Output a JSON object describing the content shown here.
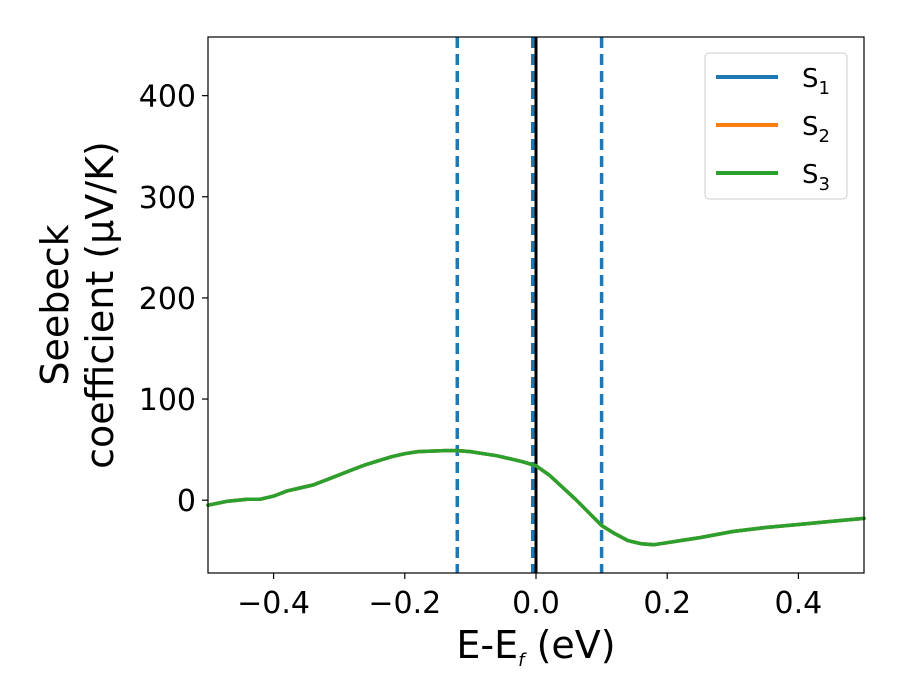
{
  "chart_data": {
    "type": "line",
    "xlabel": {
      "main": "E-E",
      "subscript": "f",
      "suffix": " (eV)"
    },
    "ylabel": {
      "line1": "Seebeck",
      "line2": "coefficient  (μV/K)"
    },
    "xlim": [
      -0.5,
      0.5
    ],
    "ylim": [
      -72,
      458
    ],
    "xticks": [
      -0.4,
      -0.2,
      0.0,
      0.2,
      0.4
    ],
    "xtick_labels": [
      "−0.4",
      "−0.2",
      "0.0",
      "0.2",
      "0.4"
    ],
    "yticks": [
      0,
      100,
      200,
      300,
      400
    ],
    "ytick_labels": [
      "0",
      "100",
      "200",
      "300",
      "400"
    ],
    "grid": false,
    "legend_position": "top-right",
    "x": [
      -0.5,
      -0.47,
      -0.44,
      -0.42,
      -0.4,
      -0.38,
      -0.36,
      -0.34,
      -0.32,
      -0.3,
      -0.28,
      -0.26,
      -0.24,
      -0.22,
      -0.2,
      -0.18,
      -0.16,
      -0.14,
      -0.12,
      -0.1,
      -0.08,
      -0.06,
      -0.04,
      -0.02,
      0.0,
      0.02,
      0.04,
      0.06,
      0.08,
      0.1,
      0.12,
      0.14,
      0.16,
      0.18,
      0.2,
      0.22,
      0.25,
      0.3,
      0.35,
      0.4,
      0.45,
      0.5
    ],
    "series": [
      {
        "name": "S",
        "sub": "1",
        "color": "#1f77b4",
        "values": [
          -5,
          -1,
          1,
          1,
          4,
          9,
          12,
          15,
          20,
          25,
          30,
          35,
          39,
          43,
          46,
          48,
          48.5,
          49,
          49,
          48,
          46,
          44,
          41,
          38,
          34,
          25,
          13,
          1,
          -12,
          -25,
          -33,
          -40,
          -43,
          -44,
          -42,
          -40,
          -37,
          -31,
          -27,
          -24,
          -21,
          -18
        ]
      },
      {
        "name": "S",
        "sub": "2",
        "color": "#ff7f0e",
        "values": [
          -5,
          -1,
          1,
          1,
          4,
          9,
          12,
          15,
          20,
          25,
          30,
          35,
          39,
          43,
          46,
          48,
          48.5,
          49,
          49,
          48,
          46,
          44,
          41,
          38,
          34,
          25,
          13,
          1,
          -12,
          -25,
          -33,
          -40,
          -43,
          -44,
          -42,
          -40,
          -37,
          -31,
          -27,
          -24,
          -21,
          -18
        ]
      },
      {
        "name": "S",
        "sub": "3",
        "color": "#2ca02c",
        "values": [
          -5,
          -1,
          1,
          1,
          4,
          9,
          12,
          15,
          20,
          25,
          30,
          35,
          39,
          43,
          46,
          48,
          48.5,
          49,
          49,
          48,
          46,
          44,
          41,
          38,
          34,
          25,
          13,
          1,
          -12,
          -25,
          -33,
          -40,
          -43,
          -44,
          -42,
          -40,
          -37,
          -31,
          -27,
          -24,
          -21,
          -18
        ]
      }
    ],
    "vlines": [
      {
        "x": -0.12,
        "color": "#1f77b4",
        "style": "dashed"
      },
      {
        "x": -0.005,
        "color": "#1f77b4",
        "style": "dashed"
      },
      {
        "x": 0.1,
        "color": "#1f77b4",
        "style": "dashed"
      },
      {
        "x": 0.0,
        "color": "#000000",
        "style": "solid"
      }
    ]
  }
}
